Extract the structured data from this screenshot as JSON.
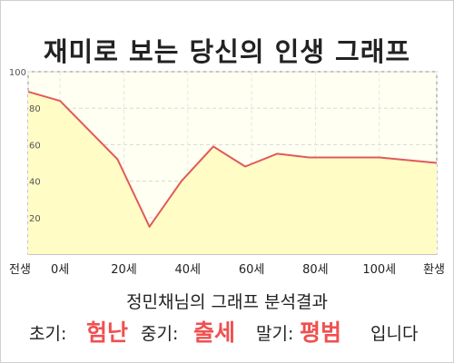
{
  "title": "재미로 보는 당신의 인생 그래프",
  "colors": {
    "line": "#e05a5a",
    "fill": "#fffcc6",
    "plot_bg": "#fffff2",
    "highlight": "#f05050"
  },
  "chart_data": {
    "type": "area",
    "x_categories": [
      "전생",
      "0세",
      "20세",
      "40세",
      "60세",
      "80세",
      "100세",
      "환생"
    ],
    "y_ticks": [
      20,
      40,
      60,
      80,
      100
    ],
    "ylim": [
      0,
      100
    ],
    "grid": true,
    "points": [
      {
        "x": -10,
        "y": 89
      },
      {
        "x": 0,
        "y": 84
      },
      {
        "x": 18,
        "y": 52
      },
      {
        "x": 28,
        "y": 15
      },
      {
        "x": 38,
        "y": 40
      },
      {
        "x": 48,
        "y": 59
      },
      {
        "x": 58,
        "y": 48
      },
      {
        "x": 68,
        "y": 55
      },
      {
        "x": 78,
        "y": 53
      },
      {
        "x": 100,
        "y": 53
      },
      {
        "x": 118,
        "y": 50
      }
    ]
  },
  "result": {
    "subtitle": "정민채님의 그래프 분석결과",
    "early_label": "초기:",
    "early_value": "험난",
    "middle_label": "중기:",
    "middle_value": "출세",
    "late_label": "말기:",
    "late_value": "평범",
    "ending": "입니다"
  }
}
